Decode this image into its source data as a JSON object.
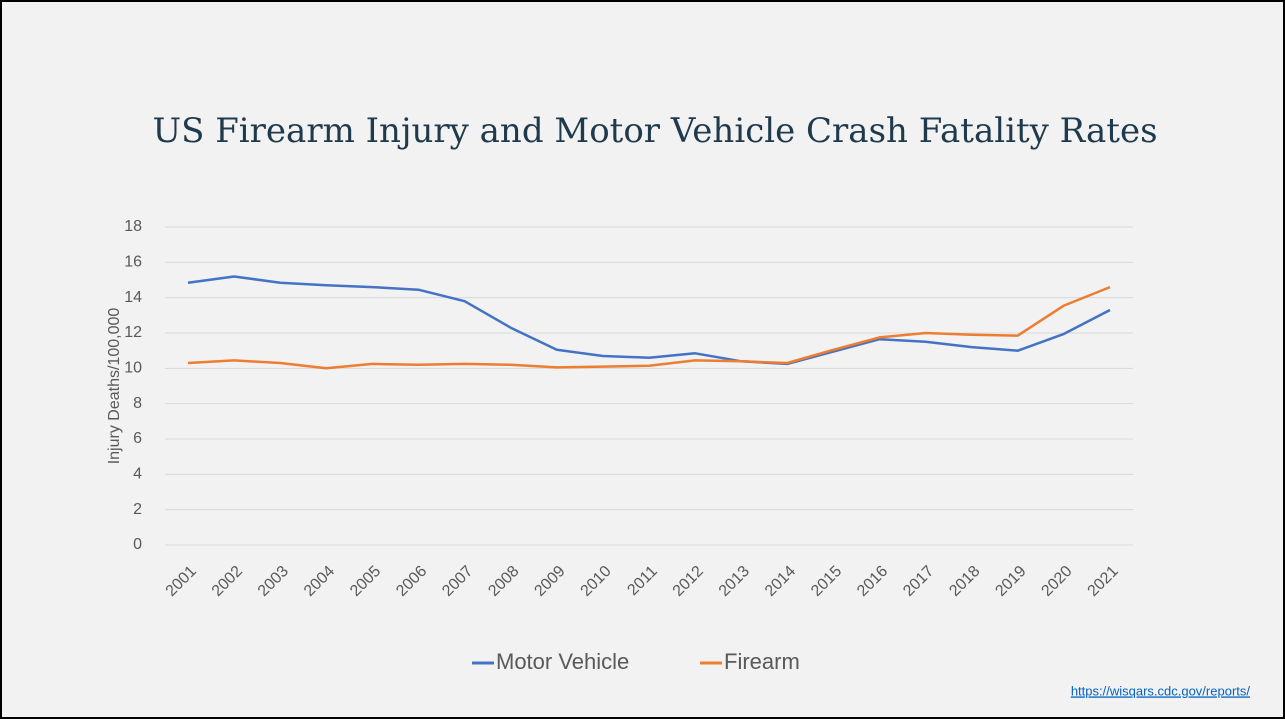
{
  "chart_data": {
    "type": "line",
    "title": "US Firearm Injury and Motor Vehicle Crash Fatality Rates",
    "y_label": "Injury Deaths/100,000",
    "categories": [
      "2001",
      "2002",
      "2003",
      "2004",
      "2005",
      "2006",
      "2007",
      "2008",
      "2009",
      "2010",
      "2011",
      "2012",
      "2013",
      "2014",
      "2015",
      "2016",
      "2017",
      "2018",
      "2019",
      "2020",
      "2021"
    ],
    "series": [
      {
        "name": "Motor Vehicle",
        "color": "#4472c4",
        "values": [
          14.85,
          15.2,
          14.85,
          14.7,
          14.6,
          14.45,
          13.8,
          12.3,
          11.05,
          10.7,
          10.6,
          10.85,
          10.4,
          10.25,
          10.95,
          11.65,
          11.5,
          11.2,
          11.0,
          11.95,
          13.3
        ]
      },
      {
        "name": "Firearm",
        "color": "#ed7d31",
        "values": [
          10.3,
          10.45,
          10.3,
          10.0,
          10.25,
          10.2,
          10.25,
          10.2,
          10.05,
          10.1,
          10.15,
          10.45,
          10.4,
          10.3,
          11.05,
          11.75,
          12.0,
          11.9,
          11.85,
          13.55,
          14.6
        ]
      }
    ],
    "ylim": [
      0,
      18
    ],
    "yticks": [
      0,
      2,
      4,
      6,
      8,
      10,
      12,
      14,
      16,
      18
    ],
    "grid": true,
    "legend": "bottom"
  },
  "source_link": "https://wisqars.cdc.gov/reports/"
}
